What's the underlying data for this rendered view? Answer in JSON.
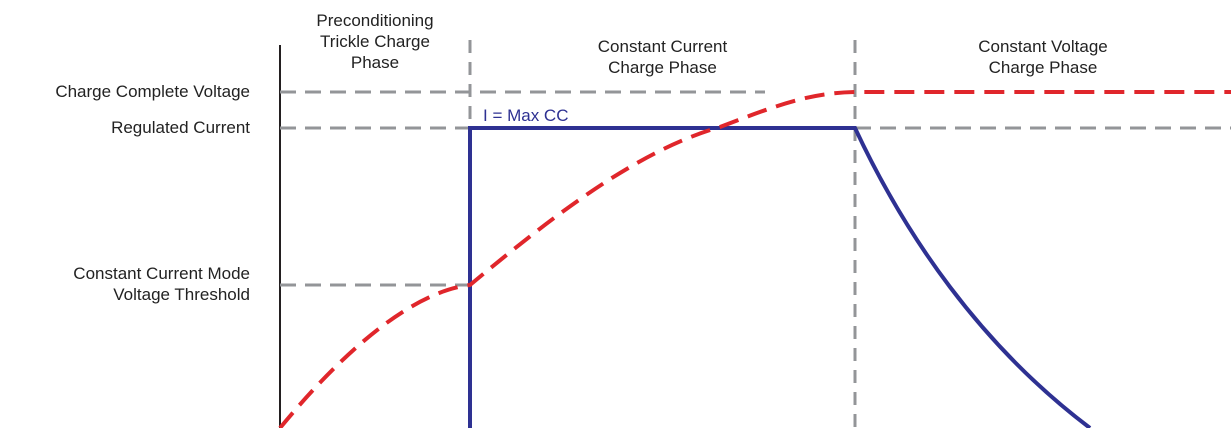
{
  "levels": {
    "charge_complete_voltage": "Charge Complete Voltage",
    "regulated_current": "Regulated Current",
    "cc_threshold_line1": "Constant Current Mode",
    "cc_threshold_line2": "Voltage Threshold"
  },
  "phases": {
    "precondition_line1": "Preconditioning",
    "precondition_line2": "Trickle Charge",
    "precondition_line3": "Phase",
    "cc_line1": "Constant Current",
    "cc_line2": "Charge Phase",
    "cv_line1": "Constant Voltage",
    "cv_line2": "Charge Phase"
  },
  "current_label": "I = Max CC",
  "colors": {
    "voltage_curve": "#e0262b",
    "current_curve": "#2e3192",
    "guide_lines": "#939598",
    "axis": "#231f20"
  }
}
